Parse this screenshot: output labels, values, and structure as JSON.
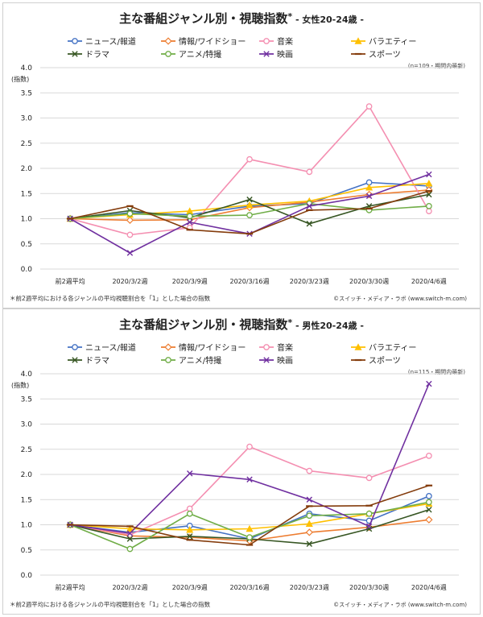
{
  "chart_data": [
    {
      "type": "line",
      "title": "主な番組ジャンル別・視聴指数",
      "title_mark": "*",
      "subtitle": "- 女性20-24歳 -",
      "ylabel": "(指数)",
      "ylim": [
        0,
        4.0
      ],
      "yticks": [
        "0.0",
        "0.5",
        "1.0",
        "1.5",
        "2.0",
        "2.5",
        "3.0",
        "3.5",
        "4.0"
      ],
      "categories": [
        "前2週平均",
        "2020/3/2週",
        "2020/3/9週",
        "2020/3/16週",
        "2020/3/23週",
        "2020/3/30週",
        "2020/4/6週"
      ],
      "sample_note": "(n=109・期間内最新)",
      "footnote": "＊前2週平均における各ジャンルの平均視聴割合を「1」とした場合の指数",
      "credit": "©スイッチ・メディア・ラボ (www.switch-m.com)",
      "grid": true,
      "legend_position": "top",
      "series": [
        {
          "name": "ニュース/報道",
          "color": "#4472c4",
          "marker": "circle",
          "values": [
            1.0,
            1.12,
            1.08,
            1.25,
            1.3,
            1.72,
            1.65
          ]
        },
        {
          "name": "情報/ワイドショー",
          "color": "#ed7d31",
          "marker": "diamond",
          "values": [
            1.0,
            0.97,
            0.98,
            1.22,
            1.33,
            1.48,
            1.57
          ]
        },
        {
          "name": "音楽",
          "color": "#f48fb1",
          "marker": "circle",
          "values": [
            1.0,
            0.68,
            0.82,
            2.18,
            1.93,
            3.23,
            1.15
          ]
        },
        {
          "name": "バラエティー",
          "color": "#ffc000",
          "marker": "triangle",
          "values": [
            1.0,
            1.08,
            1.15,
            1.27,
            1.35,
            1.62,
            1.7
          ]
        },
        {
          "name": "ドラマ",
          "color": "#375623",
          "marker": "x",
          "values": [
            1.0,
            1.16,
            1.02,
            1.38,
            0.9,
            1.25,
            1.48
          ]
        },
        {
          "name": "アニメ/特撮",
          "color": "#70ad47",
          "marker": "circle",
          "values": [
            1.0,
            1.1,
            1.05,
            1.07,
            1.3,
            1.17,
            1.25
          ]
        },
        {
          "name": "映画",
          "color": "#7030a0",
          "marker": "x",
          "values": [
            1.0,
            0.32,
            0.93,
            0.7,
            1.25,
            1.45,
            1.88
          ]
        },
        {
          "name": "スポーツ",
          "color": "#843c0c",
          "marker": "dash",
          "values": [
            1.0,
            1.25,
            0.78,
            0.7,
            1.17,
            1.2,
            1.55
          ]
        }
      ]
    },
    {
      "type": "line",
      "title": "主な番組ジャンル別・視聴指数",
      "title_mark": "*",
      "subtitle": "- 男性20-24歳 -",
      "ylabel": "(指数)",
      "ylim": [
        0,
        4.0
      ],
      "yticks": [
        "0.0",
        "0.5",
        "1.0",
        "1.5",
        "2.0",
        "2.5",
        "3.0",
        "3.5",
        "4.0"
      ],
      "categories": [
        "前2週平均",
        "2020/3/2週",
        "2020/3/9週",
        "2020/3/16週",
        "2020/3/23週",
        "2020/3/30週",
        "2020/4/6週"
      ],
      "sample_note": "(n=115・期間内最新)",
      "footnote": "＊前2週平均における各ジャンルの平均視聴割合を「1」とした場合の指数",
      "credit": "©スイッチ・メディア・ラボ (www.switch-m.com)",
      "grid": true,
      "legend_position": "top",
      "series": [
        {
          "name": "ニュース/報道",
          "color": "#4472c4",
          "marker": "circle",
          "values": [
            1.0,
            0.85,
            0.98,
            0.72,
            1.22,
            1.08,
            1.57
          ]
        },
        {
          "name": "情報/ワイドショー",
          "color": "#ed7d31",
          "marker": "diamond",
          "values": [
            1.0,
            0.78,
            0.75,
            0.68,
            0.85,
            0.95,
            1.1
          ]
        },
        {
          "name": "音楽",
          "color": "#f48fb1",
          "marker": "circle",
          "values": [
            1.0,
            0.8,
            1.32,
            2.55,
            2.07,
            1.93,
            2.37
          ]
        },
        {
          "name": "バラエティー",
          "color": "#ffc000",
          "marker": "triangle",
          "values": [
            1.0,
            0.92,
            0.9,
            0.92,
            1.02,
            1.22,
            1.42
          ]
        },
        {
          "name": "ドラマ",
          "color": "#375623",
          "marker": "x",
          "values": [
            1.0,
            0.72,
            0.77,
            0.72,
            0.62,
            0.92,
            1.3
          ]
        },
        {
          "name": "アニメ/特撮",
          "color": "#70ad47",
          "marker": "circle",
          "values": [
            1.0,
            0.52,
            1.22,
            0.75,
            1.18,
            1.22,
            1.45
          ]
        },
        {
          "name": "映画",
          "color": "#7030a0",
          "marker": "x",
          "values": [
            1.0,
            0.83,
            2.02,
            1.9,
            1.5,
            0.97,
            3.8
          ]
        },
        {
          "name": "スポーツ",
          "color": "#843c0c",
          "marker": "dash",
          "values": [
            1.0,
            0.97,
            0.7,
            0.6,
            1.37,
            1.38,
            1.78
          ]
        }
      ]
    }
  ]
}
